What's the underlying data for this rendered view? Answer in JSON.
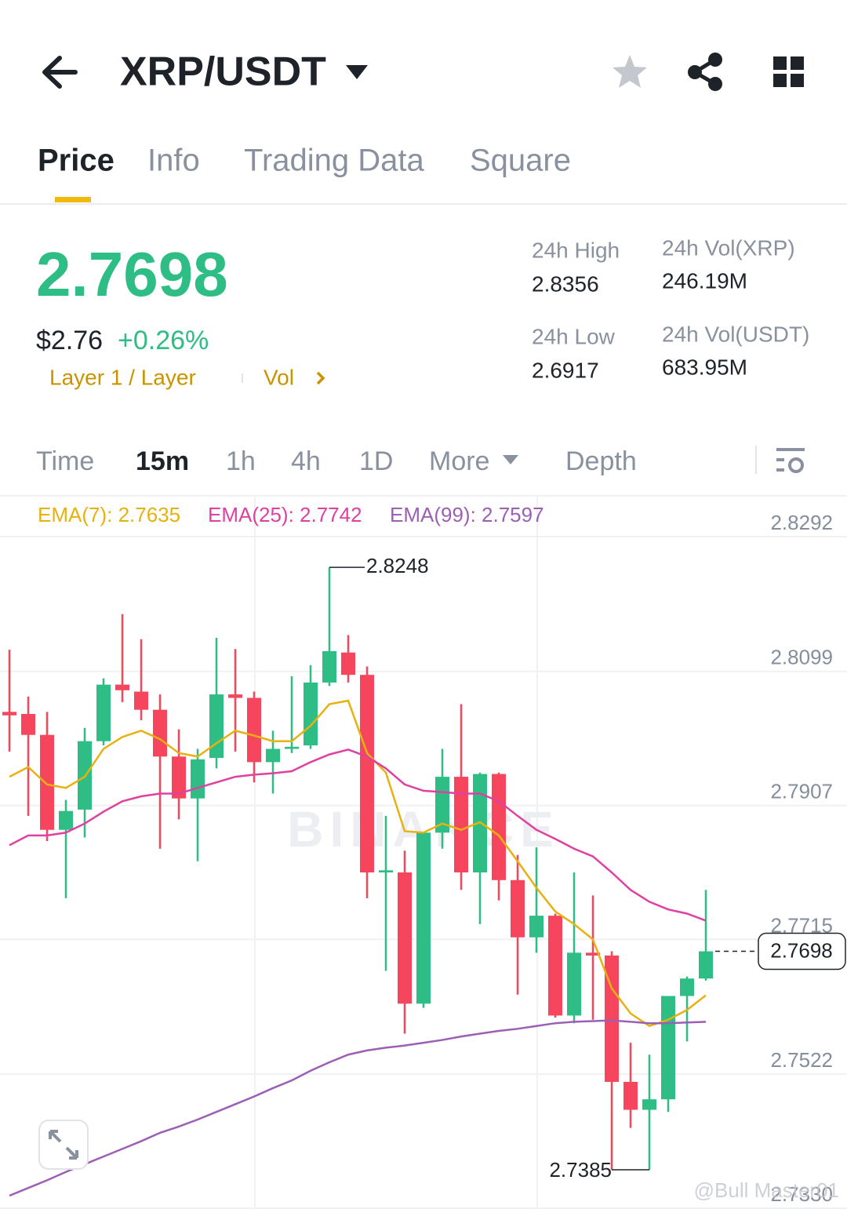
{
  "header": {
    "pair": "XRP/USDT"
  },
  "tabs": [
    "Price",
    "Info",
    "Trading Data",
    "Square"
  ],
  "ticker": {
    "price": "2.7698",
    "usd": "$2.76",
    "change": "+0.26%",
    "tags": [
      "Layer 1 / Layer",
      "Vol"
    ],
    "stats": [
      {
        "label": "24h High",
        "value": "2.8356"
      },
      {
        "label": "24h Low",
        "value": "2.6917"
      },
      {
        "label": "24h Vol(XRP)",
        "value": "246.19M"
      },
      {
        "label": "24h Vol(USDT)",
        "value": "683.95M"
      }
    ]
  },
  "intervals": [
    "Time",
    "15m",
    "1h",
    "4h",
    "1D",
    "More",
    "Depth"
  ],
  "chart_data": {
    "type": "candlestick",
    "watermark": "BINANCE",
    "up_color": "#2ebd85",
    "down_color": "#f6465d",
    "open": [
      2.8041,
      2.8038,
      2.8008,
      2.7872,
      2.7901,
      2.7999,
      2.808,
      2.807,
      2.8044,
      2.7977,
      2.7917,
      2.7975,
      2.8066,
      2.8061,
      2.7969,
      2.7988,
      2.7993,
      2.8083,
      2.8126,
      2.8094,
      2.7811,
      2.7811,
      2.7623,
      2.7868,
      2.7948,
      2.7811,
      2.7952,
      2.78,
      2.7718,
      2.7749,
      2.7606,
      2.7696,
      2.7692,
      2.7511,
      2.7471,
      2.7486,
      2.7634,
      2.7659
    ],
    "high": [
      2.813,
      2.8063,
      2.8041,
      2.7915,
      2.8018,
      2.8089,
      2.8181,
      2.8145,
      2.8066,
      2.8016,
      2.7988,
      2.8147,
      2.8131,
      2.807,
      2.8014,
      2.8092,
      2.8108,
      2.8248,
      2.8151,
      2.8106,
      2.7892,
      2.7842,
      2.7868,
      2.7988,
      2.8052,
      2.7954,
      2.7954,
      2.7836,
      2.7847,
      2.7752,
      2.7811,
      2.7778,
      2.7698,
      2.7567,
      2.755,
      2.7634,
      2.7662,
      2.7786
    ],
    "low": [
      2.7984,
      2.7892,
      2.7856,
      2.7774,
      2.7861,
      2.7993,
      2.8055,
      2.8029,
      2.7845,
      2.7887,
      2.7827,
      2.796,
      2.7984,
      2.794,
      2.7924,
      2.7982,
      2.7988,
      2.8078,
      2.8083,
      2.7774,
      2.767,
      2.758,
      2.7617,
      2.7845,
      2.7786,
      2.7737,
      2.7771,
      2.7636,
      2.7696,
      2.7603,
      2.7595,
      2.76,
      2.7385,
      2.7445,
      2.7385,
      2.7468,
      2.7569,
      2.7656
    ],
    "close": [
      2.8036,
      2.8008,
      2.7872,
      2.7899,
      2.7999,
      2.808,
      2.8072,
      2.8044,
      2.7977,
      2.7917,
      2.7973,
      2.8066,
      2.8061,
      2.7969,
      2.7988,
      2.7991,
      2.8083,
      2.8128,
      2.8094,
      2.7811,
      2.7814,
      2.7623,
      2.7868,
      2.7948,
      2.7811,
      2.7952,
      2.78,
      2.7718,
      2.7749,
      2.7606,
      2.7696,
      2.7692,
      2.7511,
      2.7471,
      2.7486,
      2.7634,
      2.7659,
      2.7698
    ],
    "series": [
      {
        "name": "EMA(7): 2.7635",
        "color": "#e8b10f",
        "values": [
          2.7948,
          2.7962,
          2.7937,
          2.7932,
          2.7948,
          2.7988,
          2.8005,
          2.8014,
          2.8002,
          2.7982,
          2.7977,
          2.7996,
          2.8014,
          2.8007,
          2.7999,
          2.7999,
          2.8021,
          2.8052,
          2.8057,
          2.7982,
          2.7954,
          2.787,
          2.7868,
          2.7881,
          2.7872,
          2.7883,
          2.7864,
          2.7827,
          2.7789,
          2.7755,
          2.7737,
          2.7715,
          2.7645,
          2.7609,
          2.7591,
          2.76,
          2.7614,
          2.7635
        ]
      },
      {
        "name": "EMA(25): 2.7742",
        "color": "#e040a0",
        "values": [
          2.785,
          2.7864,
          2.7864,
          2.7868,
          2.7881,
          2.7898,
          2.7913,
          2.792,
          2.7924,
          2.7924,
          2.7932,
          2.794,
          2.7948,
          2.7951,
          2.7953,
          2.7956,
          2.7969,
          2.798,
          2.7987,
          2.7977,
          2.796,
          2.7937,
          2.7928,
          2.7926,
          2.7924,
          2.7924,
          2.7913,
          2.7892,
          2.7872,
          2.7859,
          2.7845,
          2.7834,
          2.7811,
          2.7786,
          2.7769,
          2.7758,
          2.7752,
          2.7742
        ]
      },
      {
        "name": "EMA(99): 2.7597",
        "color": "#9c5fb5",
        "values": [
          2.7348,
          2.7359,
          2.737,
          2.7382,
          2.7393,
          2.7404,
          2.7415,
          2.7426,
          2.7438,
          2.7447,
          2.7457,
          2.7468,
          2.7479,
          2.749,
          2.7502,
          2.7513,
          2.7527,
          2.7539,
          2.755,
          2.7556,
          2.756,
          2.7563,
          2.7567,
          2.7571,
          2.7576,
          2.758,
          2.7584,
          2.7587,
          2.7591,
          2.7595,
          2.7597,
          2.7598,
          2.7599,
          2.7597,
          2.7595,
          2.7595,
          2.7596,
          2.7597
        ]
      }
    ],
    "ylim": [
      2.733,
      2.8292
    ],
    "yticks": [
      2.8292,
      2.8099,
      2.7907,
      2.7715,
      2.7522,
      {
        "value": 2.733,
        "label": "2.7330"
      }
    ],
    "grid": true
  },
  "watermark": "@Bull Master01"
}
